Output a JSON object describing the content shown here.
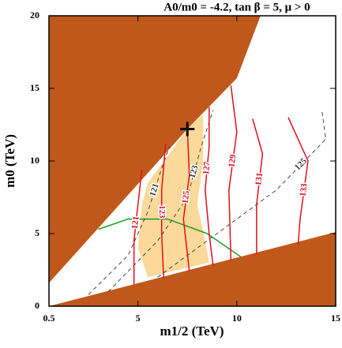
{
  "chart_data": {
    "type": "contour",
    "title": "A0/m0 = -4.2, tan β = 5, μ > 0",
    "xlabel": "m1/2 (TeV)",
    "ylabel": "m0 (TeV)",
    "xlim": [
      0.5,
      15
    ],
    "ylim": [
      0,
      20
    ],
    "xticks": [
      0.5,
      5,
      10,
      15
    ],
    "yticks": [
      0,
      5,
      10,
      15,
      20
    ],
    "regions": [
      {
        "color": "#fbd99a",
        "x": [
          5.5,
          7.5,
          8.3,
          8.3,
          8.0,
          8.4,
          8.6,
          5.5,
          5.0,
          5.2
        ],
        "values": [
          8.5,
          12.2,
          13.2,
          10,
          7,
          4.5,
          3,
          2,
          4,
          7
        ]
      },
      {
        "color": "#c1581b",
        "x": [
          0.5,
          7.5,
          10,
          11.2,
          0.5
        ],
        "values": [
          1.6,
          12.2,
          15.7,
          20,
          20
        ]
      },
      {
        "color": "#c1581b",
        "x": [
          0.5,
          15,
          15
        ],
        "values": [
          0,
          0,
          5.1
        ]
      }
    ],
    "lines": [
      {
        "color": "#1a9a1a",
        "x": [
          3.0,
          4.5,
          6.5,
          8.5,
          10.2
        ],
        "values": [
          5.3,
          6.0,
          6.0,
          5.0,
          3.4
        ]
      }
    ],
    "contours": [
      {
        "name": "121",
        "color": "#333333",
        "dashed": true,
        "x": [
          2.5,
          4.5,
          5.5,
          6.2,
          6.6
        ],
        "values": [
          0.8,
          3.5,
          6.5,
          9.5,
          11
        ]
      },
      {
        "name": "123",
        "color": "#333333",
        "dashed": true,
        "x": [
          3.5,
          6,
          7.5,
          8.2,
          8.8
        ],
        "values": [
          1,
          4.5,
          7.5,
          11,
          13.5
        ]
      },
      {
        "name": "125",
        "color": "#333333",
        "dashed": true,
        "x": [
          6,
          9,
          12,
          14.5,
          14.3
        ],
        "values": [
          2,
          5,
          8,
          11.5,
          13.5
        ]
      },
      {
        "name": "121",
        "color": "#e0101e",
        "dashed": false,
        "x": [
          5.2,
          5.0,
          4.8,
          4.8
        ],
        "values": [
          9.4,
          7,
          4.5,
          1.5
        ]
      },
      {
        "name": "123",
        "color": "#e0101e",
        "dashed": false,
        "x": [
          6.4,
          6.2,
          6.2,
          6.3
        ],
        "values": [
          11.2,
          8,
          5,
          1.9
        ]
      },
      {
        "name": "125",
        "color": "#e0101e",
        "dashed": false,
        "x": [
          7.5,
          7.6,
          7.3,
          7.6
        ],
        "values": [
          12.2,
          9,
          6,
          2.4
        ]
      },
      {
        "name": "127",
        "color": "#e0101e",
        "dashed": false,
        "x": [
          8.6,
          8.6,
          8.4,
          8.6,
          8.8
        ],
        "values": [
          13.7,
          11,
          8,
          5,
          2.8
        ]
      },
      {
        "name": "129",
        "color": "#e0101e",
        "dashed": false,
        "x": [
          9.7,
          10.0,
          9.6,
          9.7
        ],
        "values": [
          15.2,
          12,
          8,
          3.2
        ]
      },
      {
        "name": "131",
        "color": "#e0101e",
        "dashed": false,
        "x": [
          10.8,
          11.3,
          11.0,
          11.0
        ],
        "values": [
          12.9,
          10.5,
          7,
          3.6
        ]
      },
      {
        "name": "133",
        "color": "#e0101e",
        "dashed": false,
        "x": [
          12.6,
          13.6,
          13.2,
          13.1
        ],
        "values": [
          13,
          10,
          6,
          4.2
        ]
      }
    ],
    "marker": {
      "x": 7.5,
      "y": 12.2
    }
  }
}
